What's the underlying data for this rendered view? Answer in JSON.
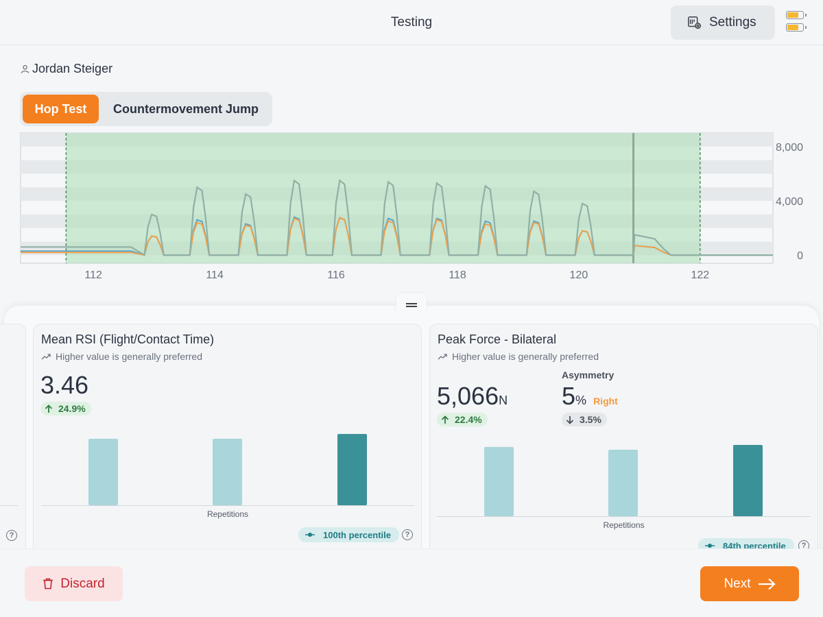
{
  "header": {
    "title": "Testing",
    "settings_label": "Settings",
    "settings_icon": "settings-gear-icon",
    "battery_icon": "battery-icon"
  },
  "user": {
    "name": "Jordan  Steiger",
    "icon": "person-icon"
  },
  "tabs": [
    {
      "label": "Hop Test",
      "active": true
    },
    {
      "label": "Countermovement Jump",
      "active": false
    }
  ],
  "chart_data": {
    "type": "line",
    "x_ticks": [
      "112",
      "114",
      "116",
      "118",
      "120",
      "122"
    ],
    "y_ticks": [
      "8,000",
      "4,000",
      "0"
    ],
    "xlim": [
      110.8,
      123.2
    ],
    "ylim": [
      -600,
      9000
    ],
    "selection_range": [
      111.55,
      122.0
    ],
    "marker_x": 120.9,
    "colors": {
      "total": "#8fb0a5",
      "left": "#5aa4c7",
      "right": "#f0a04b",
      "selection": "#a9dfb5"
    },
    "hop_peaks": [
      {
        "x": 113.0,
        "total": 3000,
        "left": 1400,
        "right": 1400
      },
      {
        "x": 113.75,
        "total": 5000,
        "left": 2600,
        "right": 2400
      },
      {
        "x": 114.55,
        "total": 4500,
        "left": 2300,
        "right": 2200
      },
      {
        "x": 115.35,
        "total": 5500,
        "left": 2800,
        "right": 2700
      },
      {
        "x": 116.1,
        "total": 5500,
        "left": 2750,
        "right": 2750
      },
      {
        "x": 116.9,
        "total": 5400,
        "left": 2700,
        "right": 2500
      },
      {
        "x": 117.7,
        "total": 5300,
        "left": 2700,
        "right": 2600
      },
      {
        "x": 118.5,
        "total": 5100,
        "left": 2500,
        "right": 2300
      },
      {
        "x": 119.3,
        "total": 4700,
        "left": 2500,
        "right": 2400
      },
      {
        "x": 120.1,
        "total": 3800,
        "left": 1800,
        "right": 1800
      }
    ]
  },
  "cards": [
    {
      "title": "Mean RSI (Flight/Contact Time)",
      "subtitle": "Higher value is generally preferred",
      "value": "3.46",
      "unit": "",
      "change": "24.9%",
      "bar_values": [
        0.78,
        0.78,
        0.83
      ],
      "x_label": "Repetitions",
      "percentile": "100th percentile"
    },
    {
      "title": "Peak Force - Bilateral",
      "subtitle": "Higher value is generally preferred",
      "value": "5,066",
      "unit": "N",
      "change": "22.4%",
      "asymmetry_label": "Asymmetry",
      "asymmetry_value": "5",
      "asymmetry_unit": "%",
      "asymmetry_side": "Right",
      "asymmetry_change": "3.5%",
      "bar_values": [
        0.81,
        0.78,
        0.83
      ],
      "x_label": "Repetitions",
      "percentile": "84th percentile"
    }
  ],
  "footer": {
    "discard_label": "Discard",
    "next_label": "Next"
  }
}
